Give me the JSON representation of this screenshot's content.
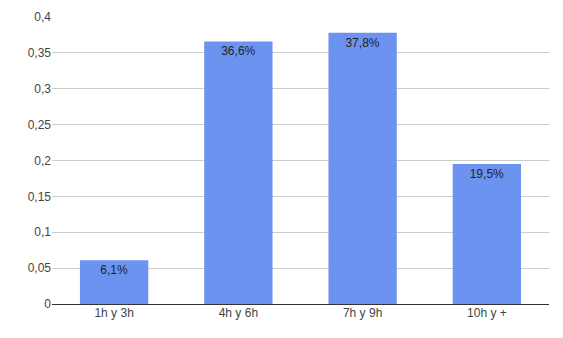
{
  "chart_data": {
    "type": "bar",
    "categories": [
      "1h y 3h",
      "4h y 6h",
      "7h y 9h",
      "10h y +"
    ],
    "values": [
      0.061,
      0.366,
      0.378,
      0.195
    ],
    "value_labels": [
      "6,1%",
      "36,6%",
      "37,8%",
      "19,5%"
    ],
    "data_labels": true,
    "color": "#6d93f0",
    "ylim": [
      0,
      0.4
    ],
    "yticks": [
      0,
      {
        "value": 0.05,
        "label": "0,05"
      },
      {
        "value": 0.1,
        "label": "0,1"
      },
      {
        "value": 0.15,
        "label": "0,15"
      },
      {
        "value": 0.2,
        "label": "0,2"
      },
      {
        "value": 0.25,
        "label": "0,25"
      },
      {
        "value": 0.3,
        "label": "0,3"
      },
      {
        "value": 0.35,
        "label": "0,35"
      },
      {
        "value": 0.4,
        "label": "0,4"
      }
    ],
    "grid": true
  }
}
